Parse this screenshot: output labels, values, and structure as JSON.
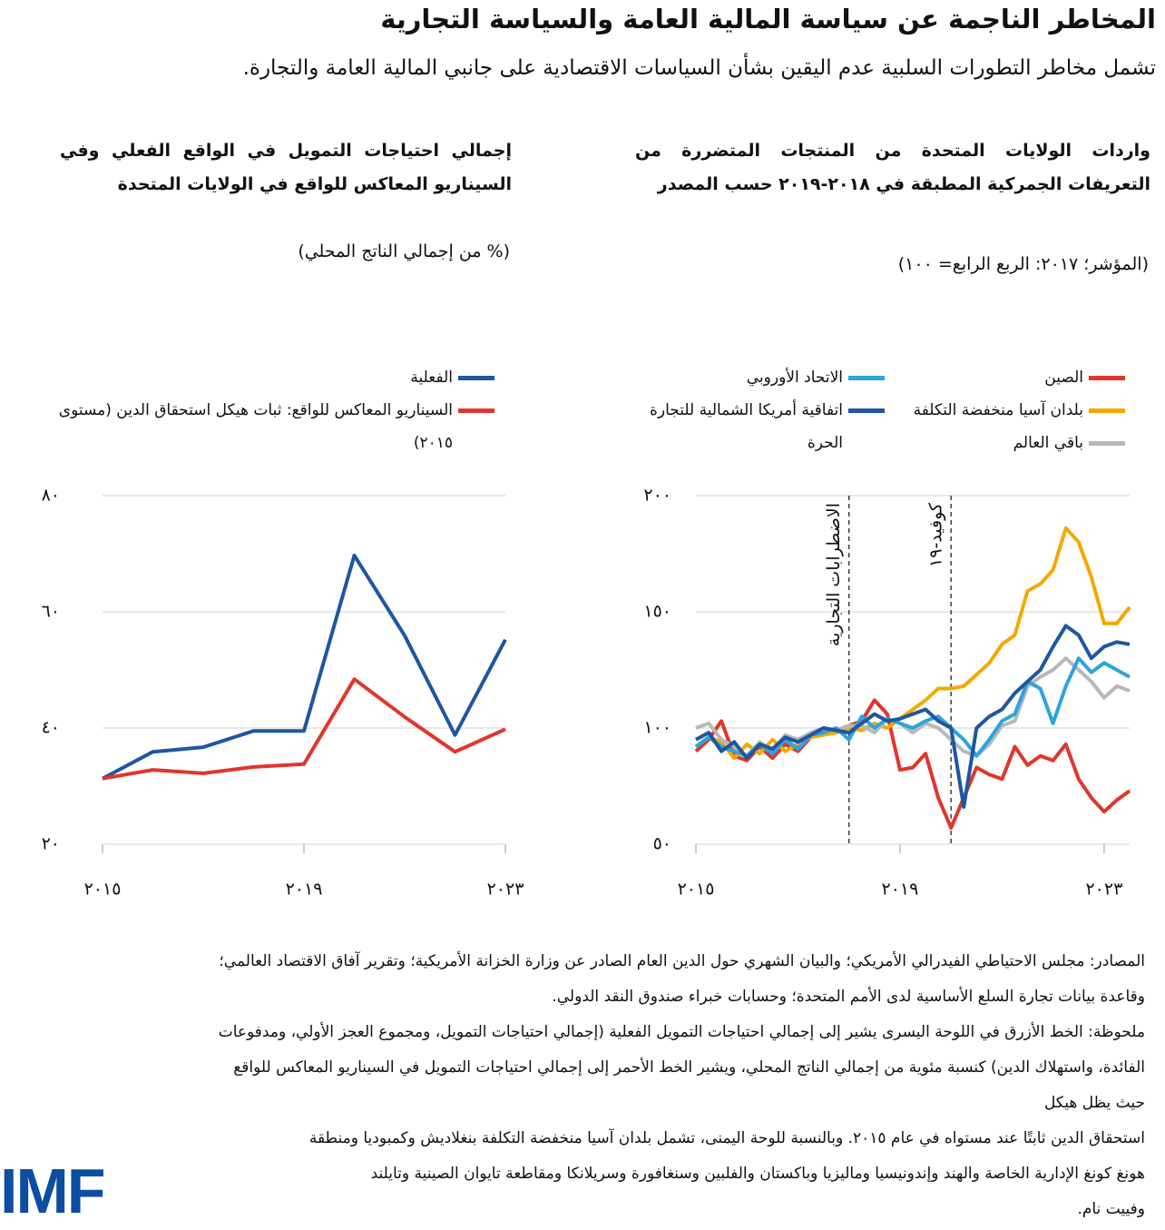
{
  "title": "المخاطر الناجمة عن سياسة المالية العامة والسياسة التجارية",
  "subtitle": "تشمل مخاطر التطورات السلبية عدم اليقين بشأن السياسات الاقتصادية على جانبي المالية العامة والتجارة.",
  "chart_data": [
    {
      "type": "line",
      "title": "واردات الولايات المتحدة من المنتجات المتضررة من التعريفات الجمركية المطبقة في ٢٠١٨-٢٠١٩ حسب المصدر",
      "unit_label": "(المؤشر؛ ٢٠١٧: الربع الرابع= ١٠٠)",
      "x": [
        2015,
        2015.25,
        2015.5,
        2015.75,
        2016,
        2016.25,
        2016.5,
        2016.75,
        2017,
        2017.25,
        2017.5,
        2017.75,
        2018,
        2018.25,
        2018.5,
        2018.75,
        2019,
        2019.25,
        2019.5,
        2019.75,
        2020,
        2020.25,
        2020.5,
        2020.75,
        2021,
        2021.25,
        2021.5,
        2021.75,
        2022,
        2022.25,
        2022.5,
        2022.75,
        2023,
        2023.25,
        2023.5
      ],
      "xlim": [
        2015,
        2023.5
      ],
      "xticks": [
        {
          "value": 2015,
          "label": "٢٠١٥"
        },
        {
          "value": 2019,
          "label": "٢٠١٩"
        },
        {
          "value": 2023,
          "label": "٢٠٢٣"
        }
      ],
      "ylim": [
        50,
        200
      ],
      "yticks": [
        {
          "value": 50,
          "label": "٥٠"
        },
        {
          "value": 100,
          "label": "١٠٠"
        },
        {
          "value": 150,
          "label": "١٥٠"
        },
        {
          "value": 200,
          "label": "٢٠٠"
        }
      ],
      "grid": true,
      "series": [
        {
          "name": "الصين",
          "color": "#e0362c",
          "values": [
            90,
            95,
            103,
            88,
            86,
            92,
            87,
            93,
            90,
            96,
            100,
            99,
            101,
            103,
            112,
            106,
            82,
            83,
            89,
            70,
            57,
            70,
            83,
            80,
            78,
            92,
            84,
            88,
            86,
            93,
            78,
            70,
            64,
            69,
            73
          ]
        },
        {
          "name": "بلدان آسيا منخفضة التكلفة",
          "color": "#f2a900",
          "values": [
            92,
            96,
            94,
            87,
            93,
            89,
            95,
            90,
            93,
            96,
            97,
            98,
            100,
            99,
            102,
            100,
            104,
            108,
            112,
            117,
            117,
            118,
            123,
            128,
            136,
            140,
            159,
            162,
            168,
            186,
            180,
            165,
            145,
            145,
            152
          ]
        },
        {
          "name": "باقي العالم",
          "color": "#b8b8b8",
          "values": [
            100,
            102,
            95,
            92,
            88,
            94,
            90,
            97,
            95,
            98,
            100,
            99,
            101,
            101,
            98,
            104,
            102,
            98,
            102,
            100,
            95,
            90,
            88,
            93,
            101,
            103,
            118,
            122,
            125,
            130,
            125,
            120,
            113,
            118,
            116
          ]
        },
        {
          "name": "الاتحاد الأوروبي",
          "color": "#2ea3dd",
          "values": [
            92,
            96,
            92,
            90,
            88,
            93,
            89,
            95,
            91,
            97,
            98,
            100,
            95,
            105,
            100,
            104,
            102,
            100,
            103,
            105,
            100,
            95,
            88,
            95,
            103,
            106,
            120,
            117,
            102,
            118,
            130,
            124,
            128,
            125,
            122
          ]
        },
        {
          "name": "اتفاقية أمريكا الشمالية للتجارة الحرة",
          "color": "#1f56a0",
          "values": [
            95,
            98,
            90,
            94,
            87,
            93,
            91,
            96,
            94,
            97,
            100,
            99,
            98,
            102,
            106,
            103,
            104,
            106,
            108,
            103,
            100,
            66,
            100,
            105,
            108,
            115,
            120,
            125,
            135,
            144,
            140,
            130,
            135,
            137,
            136
          ]
        }
      ],
      "annotations": [
        {
          "x": 2018,
          "label": "الاضطرابات التجارية"
        },
        {
          "x": 2020,
          "label": "كوفيد-١٩"
        }
      ]
    },
    {
      "type": "line",
      "title": "إجمالي احتياجات التمويل في الواقع الفعلي وفي السيناريو المعاكس للواقع في الولايات المتحدة",
      "unit_label": "(% من إجمالي الناتج المحلي)",
      "x": [
        2015,
        2016,
        2017,
        2018,
        2019,
        2020,
        2021,
        2022,
        2023
      ],
      "xlim": [
        2015,
        2023
      ],
      "xticks": [
        {
          "value": 2015,
          "label": "٢٠١٥"
        },
        {
          "value": 2019,
          "label": "٢٠١٩"
        },
        {
          "value": 2023,
          "label": "٢٠٢٣"
        }
      ],
      "ylim": [
        20,
        80
      ],
      "yticks": [
        {
          "value": 20,
          "label": "٢٠"
        },
        {
          "value": 40,
          "label": "٤٠"
        },
        {
          "value": 60,
          "label": "٦٠"
        },
        {
          "value": 80,
          "label": "٨٠"
        }
      ],
      "grid": true,
      "series": [
        {
          "name": "الفعلية",
          "color": "#1f56a0",
          "values": [
            31.3,
            35.9,
            36.7,
            39.5,
            39.5,
            69.7,
            55.9,
            38.8,
            55.2
          ]
        },
        {
          "name": "السيناريو المعاكس للواقع: ثبات هيكل استحقاق الدين (مستوى ٢٠١٥)",
          "color": "#e0362c",
          "values": [
            31.3,
            32.8,
            32.2,
            33.3,
            33.8,
            48.4,
            41.9,
            35.9,
            39.8
          ]
        }
      ]
    }
  ],
  "notes": [
    "المصادر: مجلس الاحتياطي الفيدرالي الأمريكي؛ والبيان الشهري حول الدين العام الصادر عن وزارة الخزانة الأمريكية؛ وتقرير آفاق الاقتصاد العالمي؛",
    "وقاعدة بيانات تجارة السلع الأساسية لدى الأمم المتحدة؛ وحسابات خبراء صندوق النقد الدولي.",
    "ملحوظة: الخط الأزرق في اللوحة اليسرى يشير إلى إجمالي احتياجات التمويل الفعلية (إجمالي احتياجات التمويل، ومجموع العجز الأولي، ومدفوعات",
    "الفائدة، واستهلاك الدين) كنسبة مئوية من إجمالي الناتج المحلي، ويشير الخط الأحمر إلى إجمالي احتياجات التمويل في السيناريو المعاكس للواقع",
    "حيث يظل هيكل",
    "استحقاق الدين ثابتًا عند مستواه في عام ٢٠١٥. وبالنسبة للوحة اليمنى، تشمل بلدان آسيا منخفضة التكلفة بنغلاديش وكمبوديا ومنطقة",
    "هونغ كونغ الإدارية الخاصة والهند وإندونيسيا وماليزيا وباكستان والفلبين وسنغافورة وسريلانكا ومقاطعة تايوان الصينية وتايلند",
    "وفييت نام."
  ],
  "logo": "IMF"
}
